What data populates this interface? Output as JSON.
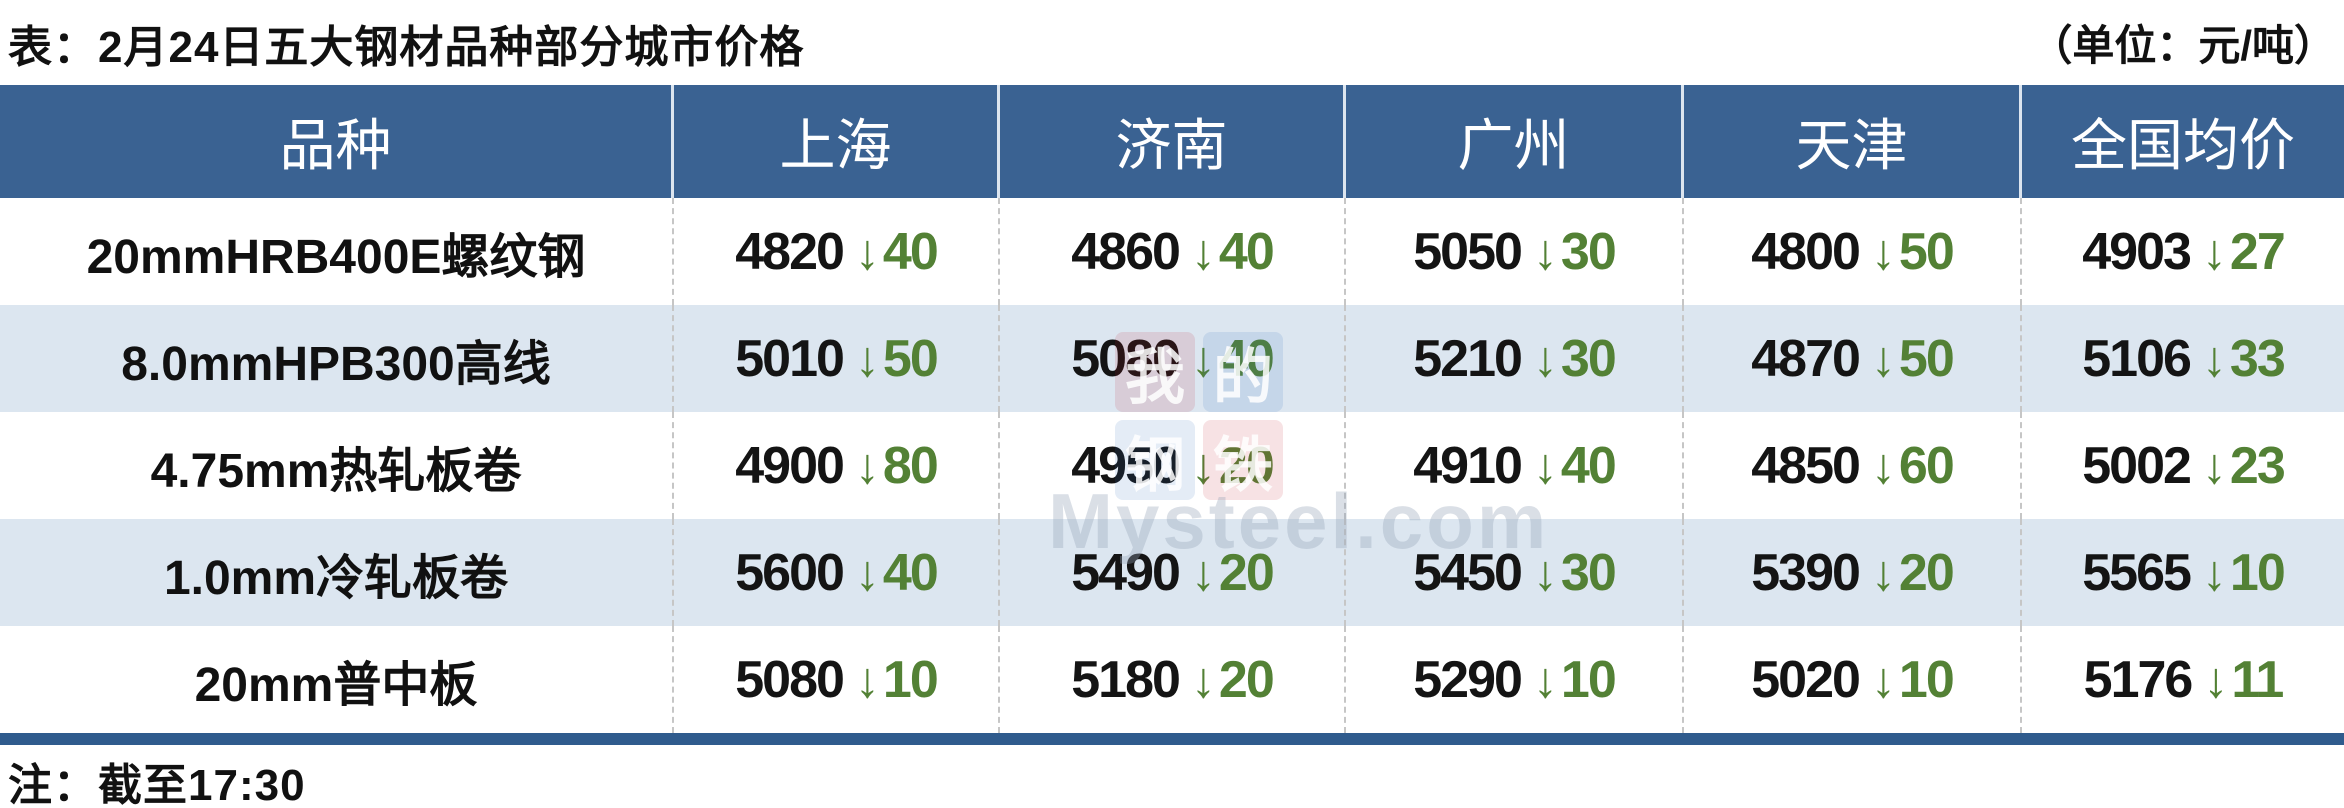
{
  "header": {
    "title": "表：2月24日五大钢材品种部分城市价格",
    "unit_label": "（单位：元/吨）"
  },
  "icons": {
    "down_arrow": "↓"
  },
  "colors": {
    "header_bg": "#3A6292",
    "row_alt_bg": "#DCE6F0",
    "drop_green": "#538135",
    "bottom_border_blue": "#2F5B8D"
  },
  "table": {
    "headers": [
      "品种",
      "上海",
      "济南",
      "广州",
      "天津",
      "全国均价"
    ],
    "rows": [
      {
        "variety": "20mmHRB400E螺纹钢",
        "cells": [
          {
            "price": "4820",
            "drop": "40"
          },
          {
            "price": "4860",
            "drop": "40"
          },
          {
            "price": "5050",
            "drop": "30"
          },
          {
            "price": "4800",
            "drop": "50"
          },
          {
            "price": "4903",
            "drop": "27"
          }
        ]
      },
      {
        "variety": "8.0mmHPB300高线",
        "cells": [
          {
            "price": "5010",
            "drop": "50"
          },
          {
            "price": "5080",
            "drop": "40"
          },
          {
            "price": "5210",
            "drop": "30"
          },
          {
            "price": "4870",
            "drop": "50"
          },
          {
            "price": "5106",
            "drop": "33"
          }
        ]
      },
      {
        "variety": "4.75mm热轧板卷",
        "cells": [
          {
            "price": "4900",
            "drop": "80"
          },
          {
            "price": "4950",
            "drop": "20"
          },
          {
            "price": "4910",
            "drop": "40"
          },
          {
            "price": "4850",
            "drop": "60"
          },
          {
            "price": "5002",
            "drop": "23"
          }
        ]
      },
      {
        "variety": "1.0mm冷轧板卷",
        "cells": [
          {
            "price": "5600",
            "drop": "40"
          },
          {
            "price": "5490",
            "drop": "20"
          },
          {
            "price": "5450",
            "drop": "30"
          },
          {
            "price": "5390",
            "drop": "20"
          },
          {
            "price": "5565",
            "drop": "10"
          }
        ]
      },
      {
        "variety": "20mm普中板",
        "cells": [
          {
            "price": "5080",
            "drop": "10"
          },
          {
            "price": "5180",
            "drop": "20"
          },
          {
            "price": "5290",
            "drop": "10"
          },
          {
            "price": "5020",
            "drop": "10"
          },
          {
            "price": "5176",
            "drop": "11"
          }
        ]
      }
    ]
  },
  "footer": {
    "note": "注：截至17:30"
  },
  "watermark": {
    "logo_chars": [
      "我",
      "的",
      "钢",
      "铁"
    ],
    "text": "Mysteel.com"
  },
  "chart_data": {
    "type": "table",
    "title": "表：2月24日五大钢材品种部分城市价格",
    "unit": "元/吨",
    "note": "截至17:30",
    "columns": [
      "品种",
      "上海",
      "济南",
      "广州",
      "天津",
      "全国均价"
    ],
    "rows": [
      {
        "品种": "20mmHRB400E螺纹钢",
        "上海": {
          "price": 4820,
          "change": -40
        },
        "济南": {
          "price": 4860,
          "change": -40
        },
        "广州": {
          "price": 5050,
          "change": -30
        },
        "天津": {
          "price": 4800,
          "change": -50
        },
        "全国均价": {
          "price": 4903,
          "change": -27
        }
      },
      {
        "品种": "8.0mmHPB300高线",
        "上海": {
          "price": 5010,
          "change": -50
        },
        "济南": {
          "price": 5080,
          "change": -40
        },
        "广州": {
          "price": 5210,
          "change": -30
        },
        "天津": {
          "price": 4870,
          "change": -50
        },
        "全国均价": {
          "price": 5106,
          "change": -33
        }
      },
      {
        "品种": "4.75mm热轧板卷",
        "上海": {
          "price": 4900,
          "change": -80
        },
        "济南": {
          "price": 4950,
          "change": -20
        },
        "广州": {
          "price": 4910,
          "change": -40
        },
        "天津": {
          "price": 4850,
          "change": -60
        },
        "全国均价": {
          "price": 5002,
          "change": -23
        }
      },
      {
        "品种": "1.0mm冷轧板卷",
        "上海": {
          "price": 5600,
          "change": -40
        },
        "济南": {
          "price": 5490,
          "change": -20
        },
        "广州": {
          "price": 5450,
          "change": -30
        },
        "天津": {
          "price": 5390,
          "change": -20
        },
        "全国均价": {
          "price": 5565,
          "change": -10
        }
      },
      {
        "品种": "20mm普中板",
        "上海": {
          "price": 5080,
          "change": -10
        },
        "济南": {
          "price": 5180,
          "change": -20
        },
        "广州": {
          "price": 5290,
          "change": -10
        },
        "天津": {
          "price": 5020,
          "change": -10
        },
        "全国均价": {
          "price": 5176,
          "change": -11
        }
      }
    ]
  }
}
